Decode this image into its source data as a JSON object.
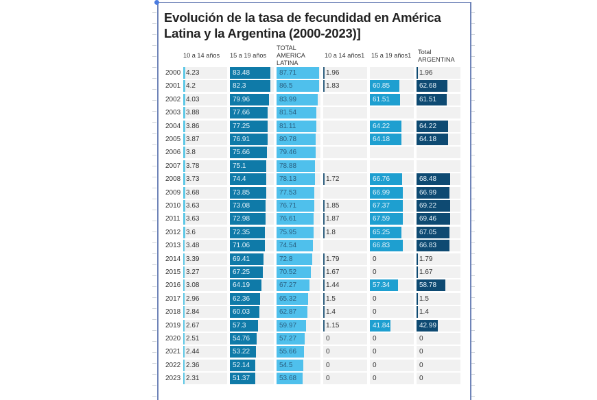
{
  "chart_data": {
    "type": "table",
    "title": "Evolución de la tasa de fecundidad en América Latina y la Argentina (2000-2023)]",
    "columns": [
      "10 a 14 años",
      "15 a 19 años",
      "TOTAL AMERICA LATINA",
      "10 a 14 años1",
      "15 a 19 años1",
      "Total ARGENTINA"
    ],
    "colors": [
      "#5ec8e6",
      "#0f7aa8",
      "#4fc0ec",
      "#2f5f7f",
      "#1e9fd0",
      "#0e4a72"
    ],
    "rows": [
      {
        "year": "2000",
        "values": [
          4.23,
          83.48,
          87.71,
          1.96,
          null,
          1.96
        ]
      },
      {
        "year": "2001",
        "values": [
          4.2,
          82.3,
          86.5,
          1.83,
          60.85,
          62.68
        ]
      },
      {
        "year": "2002",
        "values": [
          4.03,
          79.96,
          83.99,
          null,
          61.51,
          61.51
        ]
      },
      {
        "year": "2003",
        "values": [
          3.88,
          77.66,
          81.54,
          null,
          null,
          null
        ]
      },
      {
        "year": "2004",
        "values": [
          3.86,
          77.25,
          81.11,
          null,
          64.22,
          64.22
        ]
      },
      {
        "year": "2005",
        "values": [
          3.87,
          76.91,
          80.78,
          null,
          64.18,
          64.18
        ]
      },
      {
        "year": "2006",
        "values": [
          3.8,
          75.66,
          79.46,
          null,
          null,
          null
        ]
      },
      {
        "year": "2007",
        "values": [
          3.78,
          75.1,
          78.88,
          null,
          null,
          null
        ]
      },
      {
        "year": "2008",
        "values": [
          3.73,
          74.4,
          78.13,
          1.72,
          66.76,
          68.48
        ]
      },
      {
        "year": "2009",
        "values": [
          3.68,
          73.85,
          77.53,
          null,
          66.99,
          66.99
        ]
      },
      {
        "year": "2010",
        "values": [
          3.63,
          73.08,
          76.71,
          1.85,
          67.37,
          69.22
        ]
      },
      {
        "year": "2011",
        "values": [
          3.63,
          72.98,
          76.61,
          1.87,
          67.59,
          69.46
        ]
      },
      {
        "year": "2012",
        "values": [
          3.6,
          72.35,
          75.95,
          1.8,
          65.25,
          67.05
        ]
      },
      {
        "year": "2013",
        "values": [
          3.48,
          71.06,
          74.54,
          null,
          66.83,
          66.83
        ]
      },
      {
        "year": "2014",
        "values": [
          3.39,
          69.41,
          72.8,
          1.79,
          0,
          1.79
        ]
      },
      {
        "year": "2015",
        "values": [
          3.27,
          67.25,
          70.52,
          1.67,
          0,
          1.67
        ]
      },
      {
        "year": "2016",
        "values": [
          3.08,
          64.19,
          67.27,
          1.44,
          57.34,
          58.78
        ]
      },
      {
        "year": "2017",
        "values": [
          2.96,
          62.36,
          65.32,
          1.5,
          0,
          1.5
        ]
      },
      {
        "year": "2018",
        "values": [
          2.84,
          60.03,
          62.87,
          1.4,
          0,
          1.4
        ]
      },
      {
        "year": "2019",
        "values": [
          2.67,
          57.3,
          59.97,
          1.15,
          41.84,
          42.99
        ]
      },
      {
        "year": "2020",
        "values": [
          2.51,
          54.76,
          57.27,
          0,
          0,
          0
        ]
      },
      {
        "year": "2021",
        "values": [
          2.44,
          53.22,
          55.66,
          0,
          0,
          0
        ]
      },
      {
        "year": "2022",
        "values": [
          2.36,
          52.14,
          54.5,
          0,
          0,
          0
        ]
      },
      {
        "year": "2023",
        "values": [
          2.31,
          51.37,
          53.68,
          0,
          0,
          0
        ]
      }
    ],
    "scale_max": 90
  }
}
